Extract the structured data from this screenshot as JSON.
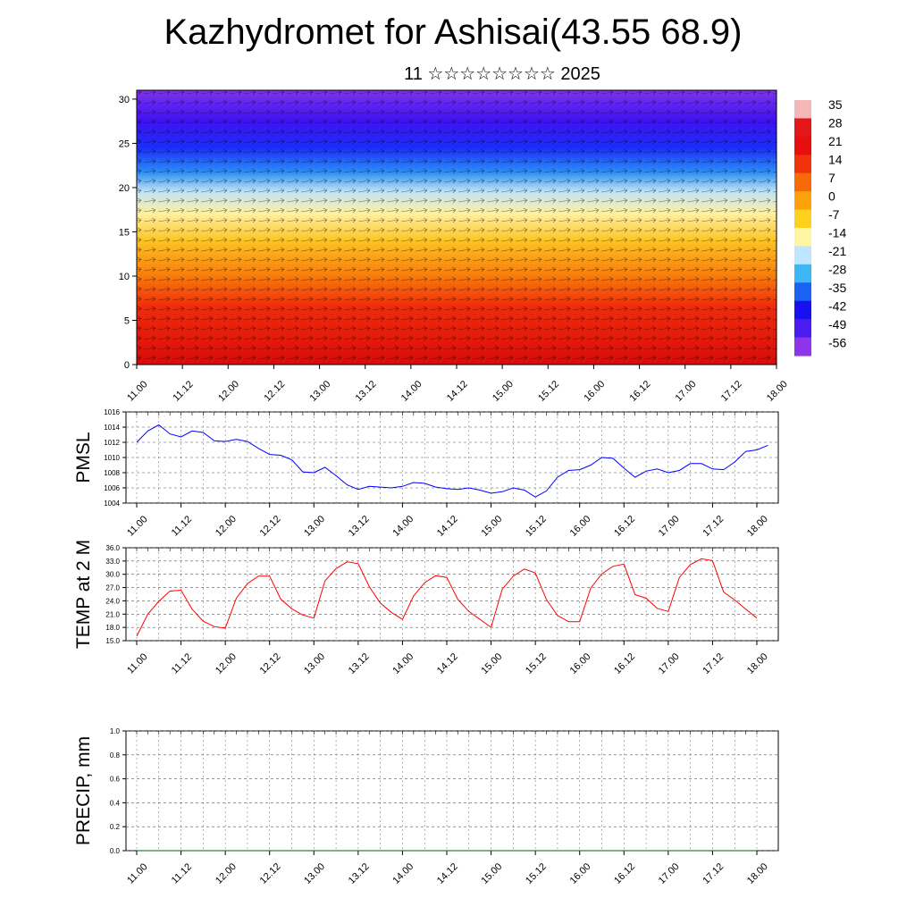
{
  "header": {
    "title": "Kazhydromet for Ashisai(43.55 68.9)",
    "subtitle": "11 ☆☆☆☆☆☆☆☆ 2025"
  },
  "colors": {
    "pmsl_line": "#0000ff",
    "temp_line": "#ff0000",
    "precip_line": "#006400"
  },
  "chart_data": [
    {
      "type": "heatmap",
      "id": "upper-air",
      "title": "",
      "xlabel": "",
      "ylabel": "",
      "x_ticks": [
        "11.00",
        "11.12",
        "12.00",
        "12.12",
        "13.00",
        "13.12",
        "14.00",
        "14.12",
        "15.00",
        "15.12",
        "16.00",
        "16.12",
        "17.00",
        "17.12",
        "18.00"
      ],
      "y_ticks": [
        0,
        5,
        10,
        15,
        20,
        25,
        30
      ],
      "ylim": [
        0,
        31
      ],
      "colorbar": {
        "labels": [
          "35",
          "28",
          "21",
          "14",
          "7",
          "0",
          "-7",
          "-14",
          "-21",
          "-28",
          "-35",
          "-42",
          "-49",
          "-56"
        ],
        "colors": [
          "#f4b6b6",
          "#e3161a",
          "#e70e0e",
          "#f0330a",
          "#f76a0a",
          "#fca10c",
          "#fdd21f",
          "#fff6a3",
          "#bfe6ff",
          "#3cb6f5",
          "#1a63f2",
          "#1810ef",
          "#4b1cf0",
          "#8c35eb"
        ]
      },
      "wind_vectors": true
    },
    {
      "type": "line",
      "id": "pmsl",
      "ylabel": "PMSL",
      "ylim": [
        1004,
        1016
      ],
      "y_ticks": [
        "1016",
        "1014",
        "1012",
        "1010",
        "1008",
        "1006",
        "1004"
      ],
      "x_ticks": [
        "11.00",
        "11.12",
        "12.00",
        "12.12",
        "13.00",
        "13.12",
        "14.00",
        "14.12",
        "15.00",
        "15.12",
        "16.00",
        "16.12",
        "17.00",
        "17.12",
        "18.00"
      ],
      "grid": true,
      "series": [
        {
          "values": [
            1012.0,
            1013.5,
            1014.3,
            1013.1,
            1012.7,
            1013.5,
            1013.3,
            1012.2,
            1012.1,
            1012.4,
            1012.1,
            1011.2,
            1010.4,
            1010.3,
            1009.7,
            1008.1,
            1008.0,
            1008.7,
            1007.6,
            1006.4,
            1005.8,
            1006.2,
            1006.1,
            1006.0,
            1006.2,
            1006.7,
            1006.6,
            1006.1,
            1005.9,
            1005.8,
            1006.0,
            1005.7,
            1005.3,
            1005.5,
            1006.0,
            1005.7,
            1004.8,
            1005.6,
            1007.4,
            1008.3,
            1008.4,
            1009.0,
            1010.0,
            1009.9,
            1008.6,
            1007.4,
            1008.2,
            1008.5,
            1008.0,
            1008.3,
            1009.2,
            1009.2,
            1008.5,
            1008.4,
            1009.4,
            1010.8,
            1011.0,
            1011.6
          ]
        }
      ]
    },
    {
      "type": "line",
      "id": "temp",
      "ylabel": "TEMP at 2 M",
      "ylim": [
        15,
        36
      ],
      "y_ticks": [
        "36.0",
        "33.0",
        "30.0",
        "27.0",
        "24.0",
        "21.0",
        "18.0",
        "15.0"
      ],
      "x_ticks": [
        "11.00",
        "11.12",
        "12.00",
        "12.12",
        "13.00",
        "13.12",
        "14.00",
        "14.12",
        "15.00",
        "15.12",
        "16.00",
        "16.12",
        "17.00",
        "17.12",
        "18.00"
      ],
      "grid": true,
      "series": [
        {
          "values": [
            16.0,
            21.0,
            23.9,
            26.2,
            26.4,
            22.1,
            19.4,
            18.2,
            17.8,
            24.6,
            27.9,
            29.6,
            29.6,
            24.4,
            22.2,
            20.8,
            20.1,
            28.5,
            31.3,
            32.8,
            32.4,
            27.2,
            23.5,
            21.4,
            19.8,
            25.1,
            28.1,
            29.7,
            29.3,
            24.3,
            21.6,
            19.8,
            18.0,
            26.6,
            29.6,
            31.2,
            30.3,
            24.3,
            20.7,
            19.3,
            19.3,
            26.9,
            30.1,
            31.8,
            32.3,
            25.4,
            24.6,
            22.3,
            21.6,
            29.3,
            32.2,
            33.5,
            33.1,
            26.0,
            24.2,
            22.1,
            20.1
          ]
        }
      ]
    },
    {
      "type": "line",
      "id": "precip",
      "ylabel": "PRECIP, mm",
      "ylim": [
        0,
        1
      ],
      "y_ticks": [
        "1.0",
        "0.8",
        "0.6",
        "0.4",
        "0.2",
        "0.0"
      ],
      "x_ticks": [
        "11.00",
        "11.12",
        "12.00",
        "12.12",
        "13.00",
        "13.12",
        "14.00",
        "14.12",
        "15.00",
        "15.12",
        "16.00",
        "16.12",
        "17.00",
        "17.12",
        "18.00"
      ],
      "grid": true,
      "series": [
        {
          "values": [
            0,
            0,
            0,
            0,
            0,
            0,
            0,
            0,
            0,
            0,
            0,
            0,
            0,
            0,
            0,
            0,
            0,
            0,
            0,
            0,
            0,
            0,
            0,
            0,
            0,
            0,
            0,
            0,
            0,
            0,
            0,
            0,
            0,
            0,
            0,
            0,
            0,
            0,
            0,
            0,
            0,
            0,
            0,
            0,
            0,
            0,
            0,
            0,
            0,
            0,
            0,
            0,
            0,
            0,
            0,
            0,
            0
          ]
        }
      ]
    }
  ]
}
